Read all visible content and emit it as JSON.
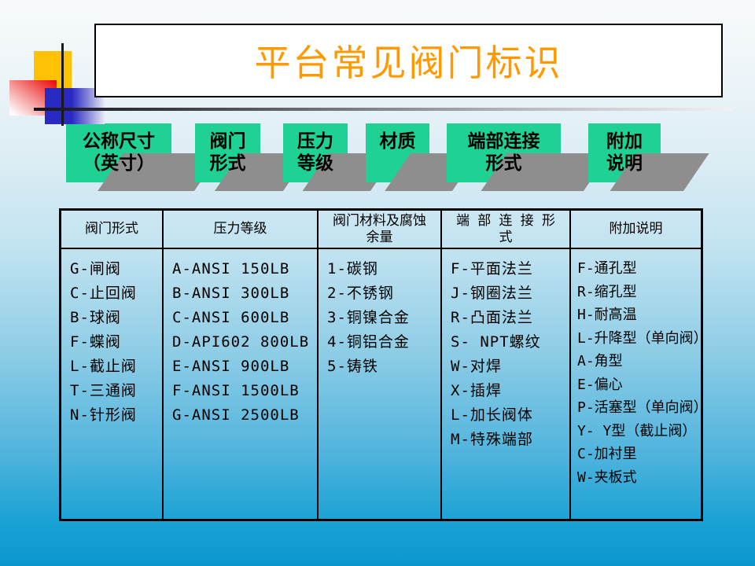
{
  "colors": {
    "bg_top": "#f8fbfc",
    "bg_bottom": "#0b97ce",
    "title_orange": "#ff9900",
    "box_green": "#1fd195",
    "shadow_gray": "#8e8e8e",
    "square_yellow": "#ffc103",
    "square_blue": "#2929c4",
    "square_red": "#ee1111",
    "line_black": "#1a1a1a",
    "table_border": "#000000",
    "text_black": "#000000"
  },
  "title": {
    "text": "平台常见阀门标识"
  },
  "flow_boxes": [
    {
      "lines": [
        "公称尺寸",
        "（英寸）"
      ]
    },
    {
      "lines": [
        "阀门",
        "形式"
      ]
    },
    {
      "lines": [
        "压力",
        "等级"
      ]
    },
    {
      "lines": [
        "材质"
      ]
    },
    {
      "lines": [
        "端部连接",
        "形式"
      ]
    },
    {
      "lines": [
        "附加",
        "说明"
      ]
    }
  ],
  "table": {
    "headers": [
      [
        "阀门形式"
      ],
      [
        "压力等级"
      ],
      [
        "阀门材料及腐蚀",
        "余量"
      ],
      [
        "端 部 连 接 形",
        "式"
      ],
      [
        "附加说明"
      ]
    ],
    "columns": [
      [
        "G-闸阀",
        "C-止回阀",
        "B-球阀",
        "F-蝶阀",
        "L-截止阀",
        "T-三通阀",
        "N-针形阀"
      ],
      [
        "A-ANSI 150LB",
        "B-ANSI 300LB",
        "C-ANSI 600LB",
        "D-API602 800LB",
        "E-ANSI 900LB",
        "F-ANSI 1500LB",
        "G-ANSI 2500LB"
      ],
      [
        "1-碳钢",
        "2-不锈钢",
        "3-铜镍合金",
        "4-铜铝合金",
        "5-铸铁"
      ],
      [
        "F-平面法兰",
        "J-钢圈法兰",
        "R-凸面法兰",
        "S- NPT螺纹",
        "W-对焊",
        "X-插焊",
        "L-加长阀体",
        "M-特殊端部"
      ],
      [
        "F-通孔型",
        "R-缩孔型",
        "H-耐高温",
        "L-升降型（单向阀）",
        "A-角型",
        "E-偏心",
        "P-活塞型（单向阀）",
        "Y- Y型（截止阀）",
        "C-加衬里",
        "W-夹板式"
      ]
    ]
  }
}
